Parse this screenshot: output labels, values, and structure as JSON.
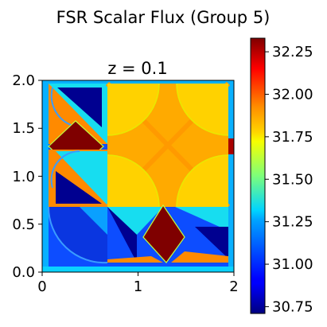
{
  "figure_title": "FSR Scalar Flux (Group 5)",
  "chart_data": {
    "type": "heatmap",
    "title": "z = 0.1",
    "xlabel": "",
    "ylabel": "",
    "xlim": [
      0,
      2
    ],
    "ylim": [
      0,
      2
    ],
    "x_ticks": [
      "0",
      "1",
      "2"
    ],
    "y_ticks": [
      "0.0",
      "0.5",
      "1.0",
      "1.5",
      "2.0"
    ],
    "colormap": "jet",
    "colorbar": {
      "vmin": 30.71,
      "vmax": 32.33,
      "ticks": [
        "30.75",
        "31.00",
        "31.25",
        "31.50",
        "31.75",
        "32.00",
        "32.25"
      ],
      "tick_values": [
        30.75,
        31.0,
        31.25,
        31.5,
        31.75,
        32.0,
        32.25
      ]
    },
    "regions": [
      {
        "name": "top-left pin inner triangle",
        "value": 30.72
      },
      {
        "name": "top-left pin outer wedge",
        "value": 31.25
      },
      {
        "name": "left moderator cusp",
        "value": 32.3
      },
      {
        "name": "mid-left pin inner triangle",
        "value": 30.75
      },
      {
        "name": "mid-left pin outer wedge",
        "value": 31.2
      },
      {
        "name": "left pin coolant",
        "value": 32.0
      },
      {
        "name": "central assembly background",
        "value": 31.95
      },
      {
        "name": "central assembly pins",
        "value": 31.78
      },
      {
        "name": "lower band blocks",
        "value": 30.95
      },
      {
        "name": "lower band light wedges",
        "value": 31.2
      },
      {
        "name": "bottom moderator cusp",
        "value": 32.3
      },
      {
        "name": "bottom-right pin triangle",
        "value": 30.72
      },
      {
        "name": "boundary strip",
        "value": 31.1
      },
      {
        "name": "right edge hotspot",
        "value": 32.3
      }
    ]
  }
}
